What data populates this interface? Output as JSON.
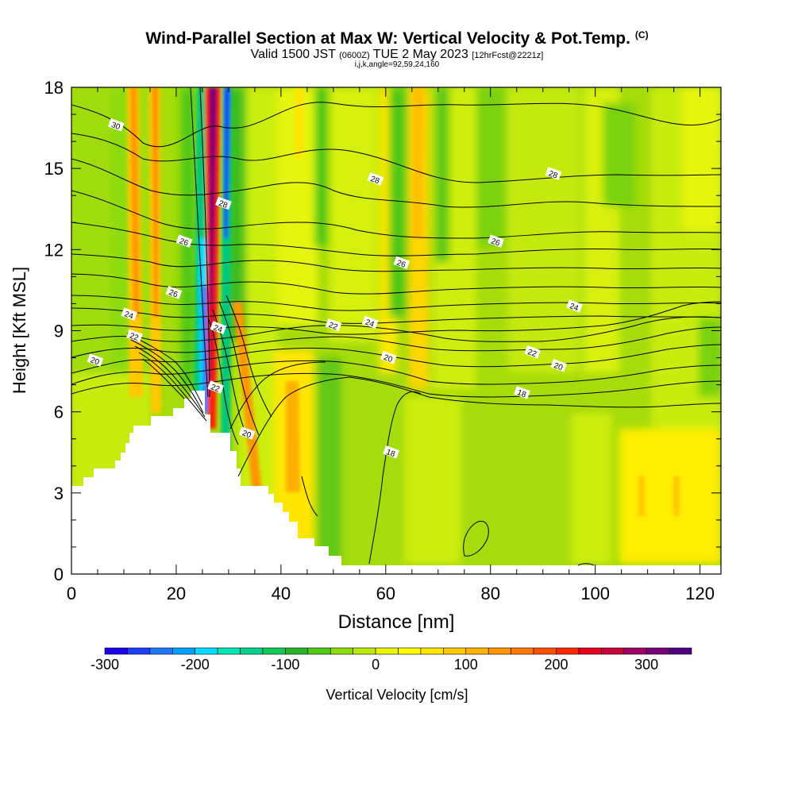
{
  "chart_data": {
    "type": "heatmap",
    "title": "Wind-Parallel Section at Max W: Vertical Velocity & Pot.Temp.",
    "title_mark": "(C)",
    "subtitle_main": "Valid 1500 JST",
    "subtitle_utc": "(0600Z)",
    "subtitle_date": "TUE 2 May 2023",
    "subtitle_fcst": "[12hrFcst@2221z]",
    "subtitle_indices": "i,j,k,angle=92,59,24,160",
    "xlabel": "Distance [nm]",
    "ylabel": "Height [Kft MSL]",
    "xlim": [
      0,
      124
    ],
    "ylim": [
      0,
      18
    ],
    "x_ticks": [
      0,
      20,
      40,
      60,
      80,
      100,
      120
    ],
    "y_ticks": [
      0,
      3,
      6,
      9,
      12,
      15,
      18
    ],
    "colorbar": {
      "label": "Vertical Velocity [cm/s]",
      "range": [
        -300,
        350
      ],
      "ticks": [
        -300,
        -200,
        -100,
        0,
        100,
        200,
        300
      ],
      "colors": [
        "#1a00e8",
        "#1e3cff",
        "#1e78ff",
        "#00a0ff",
        "#00dcff",
        "#00e6b4",
        "#00d28c",
        "#14c85a",
        "#28b428",
        "#50c814",
        "#8cdc0a",
        "#beeb0a",
        "#ebf50a",
        "#ffff00",
        "#ffe600",
        "#ffc800",
        "#ffb400",
        "#ff9600",
        "#ff7800",
        "#ff5000",
        "#ff2800",
        "#e6001e",
        "#c8003c",
        "#a00064",
        "#780078",
        "#500082"
      ]
    },
    "contour_variable": "potential temperature (C)",
    "contour_labels": [
      {
        "value": 30,
        "x": 8.5,
        "y": 16.6
      },
      {
        "value": 28,
        "x": 29,
        "y": 13.7
      },
      {
        "value": 28,
        "x": 58,
        "y": 14.6
      },
      {
        "value": 28,
        "x": 92,
        "y": 14.8
      },
      {
        "value": 26,
        "x": 21.5,
        "y": 12.3
      },
      {
        "value": 26,
        "x": 19.5,
        "y": 10.4
      },
      {
        "value": 26,
        "x": 63,
        "y": 11.5
      },
      {
        "value": 26,
        "x": 81,
        "y": 12.3
      },
      {
        "value": 24,
        "x": 11,
        "y": 9.6
      },
      {
        "value": 24,
        "x": 28,
        "y": 9.1
      },
      {
        "value": 24,
        "x": 57,
        "y": 9.3
      },
      {
        "value": 24,
        "x": 96,
        "y": 9.9
      },
      {
        "value": 22,
        "x": 12,
        "y": 8.8
      },
      {
        "value": 22,
        "x": 50,
        "y": 9.2
      },
      {
        "value": 22,
        "x": 88,
        "y": 8.2
      },
      {
        "value": 22,
        "x": 27.5,
        "y": 6.9
      },
      {
        "value": 20,
        "x": 4.5,
        "y": 7.9
      },
      {
        "value": 20,
        "x": 60.5,
        "y": 8.0
      },
      {
        "value": 20,
        "x": 93,
        "y": 7.7
      },
      {
        "value": 20,
        "x": 33.5,
        "y": 5.2
      },
      {
        "value": 18,
        "x": 86,
        "y": 6.7
      },
      {
        "value": 18,
        "x": 61,
        "y": 4.5
      }
    ]
  }
}
